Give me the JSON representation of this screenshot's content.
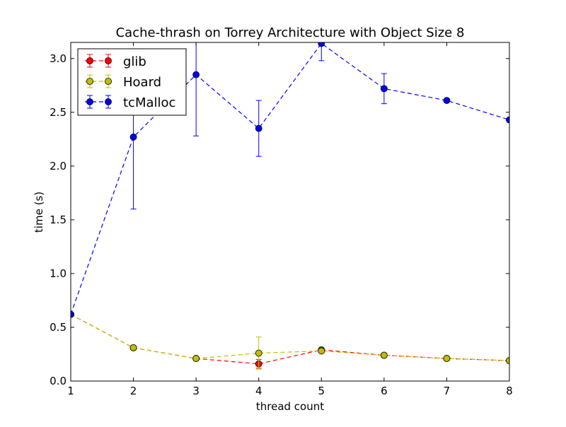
{
  "chart_data": {
    "type": "line",
    "title": "Cache-thrash on Torrey Architecture with Object Size 8",
    "xlabel": "thread count",
    "ylabel": "time (s)",
    "xlim": [
      1,
      8
    ],
    "ylim": [
      0.0,
      3.15
    ],
    "x_ticks": [
      1,
      2,
      3,
      4,
      5,
      6,
      7,
      8
    ],
    "x_tick_labels": [
      "1",
      "2",
      "3",
      "4",
      "5",
      "6",
      "7",
      "8"
    ],
    "y_ticks": [
      0.0,
      0.5,
      1.0,
      1.5,
      2.0,
      2.5,
      3.0
    ],
    "y_tick_labels": [
      "0.0",
      "0.5",
      "1.0",
      "1.5",
      "2.0",
      "2.5",
      "3.0"
    ],
    "grid": false,
    "legend_position": "top-left",
    "x": [
      1,
      2,
      3,
      4,
      5,
      6,
      7,
      8
    ],
    "series": [
      {
        "name": "glib",
        "color": "#ff0000",
        "values": [
          0.62,
          0.31,
          0.21,
          0.16,
          0.29,
          0.24,
          0.21,
          0.19
        ],
        "errors": [
          0.0,
          0.0,
          0.0,
          0.04,
          0.0,
          0.0,
          0.0,
          0.0
        ]
      },
      {
        "name": "Hoard",
        "color": "#bfbf00",
        "values": [
          0.62,
          0.31,
          0.21,
          0.26,
          0.28,
          0.24,
          0.21,
          0.19
        ],
        "errors": [
          0.0,
          0.02,
          0.0,
          0.15,
          0.02,
          0.0,
          0.0,
          0.0
        ]
      },
      {
        "name": "tcMalloc",
        "color": "#0000ff",
        "values": [
          0.62,
          2.27,
          2.85,
          2.35,
          3.14,
          2.72,
          2.61,
          2.43
        ],
        "errors": [
          0.0,
          0.67,
          0.57,
          0.26,
          0.16,
          0.14,
          0.0,
          0.0
        ]
      }
    ]
  }
}
